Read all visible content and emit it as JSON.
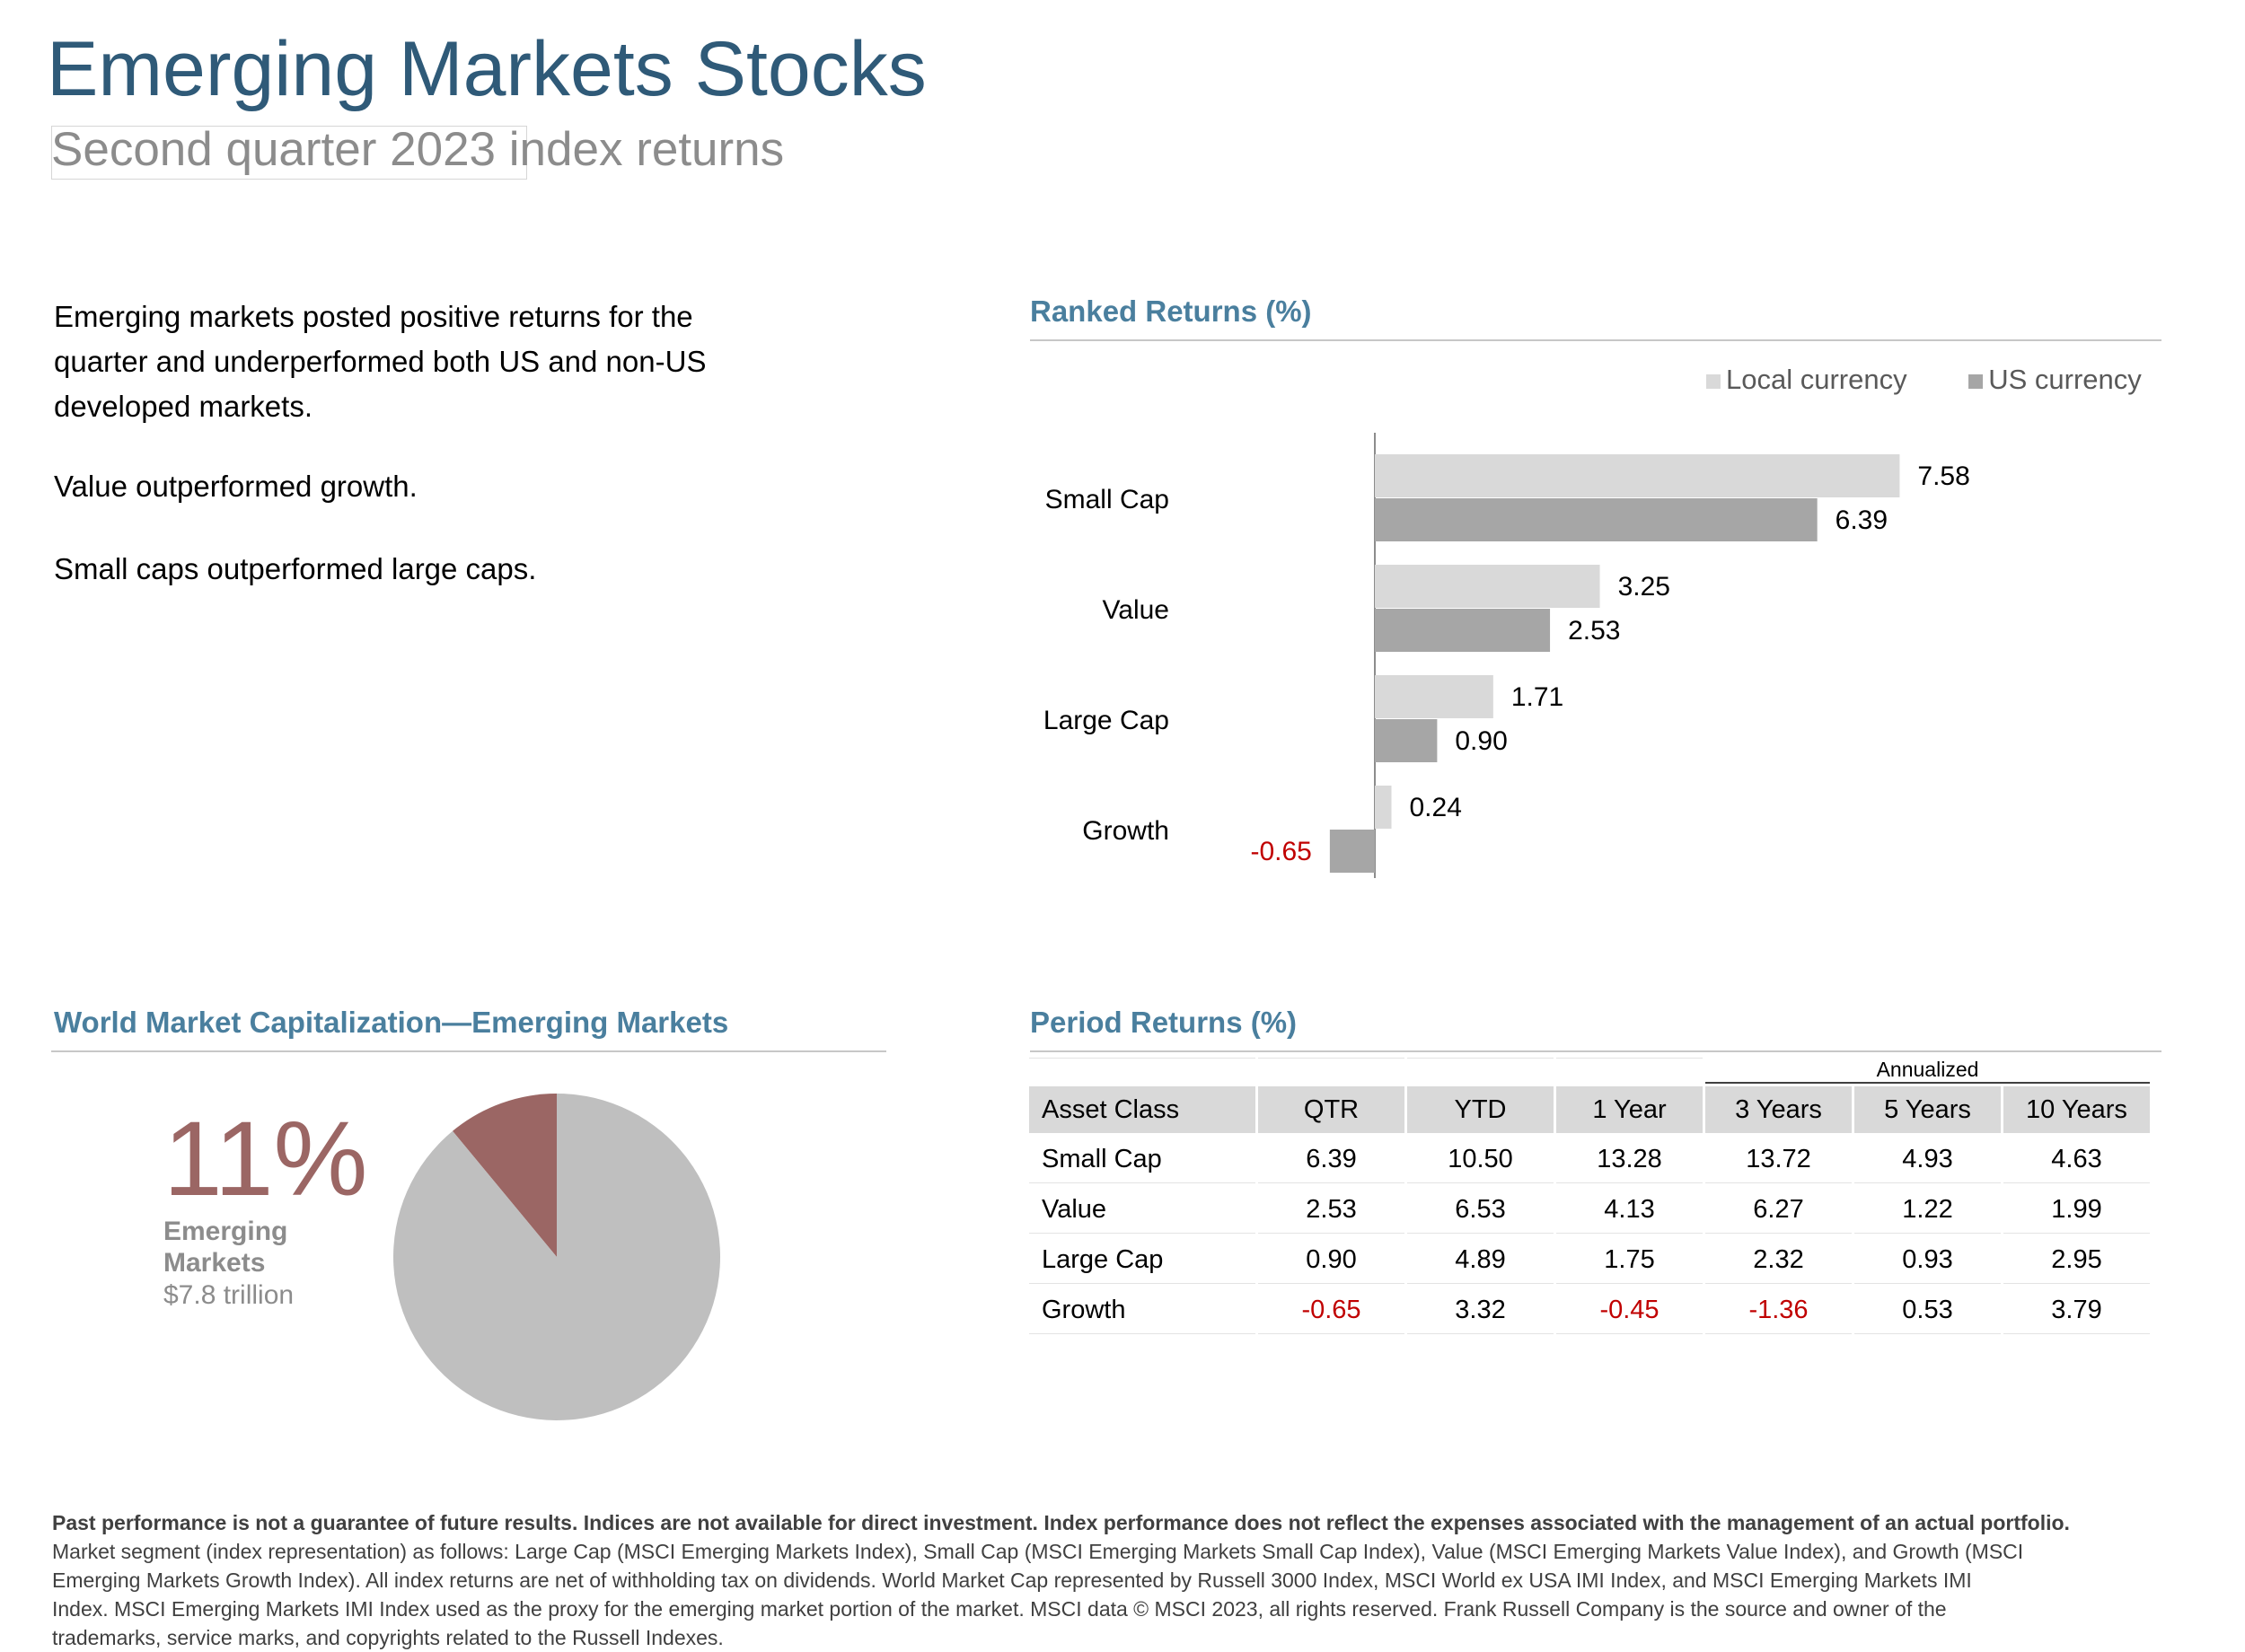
{
  "header": {
    "title": "Emerging Markets Stocks",
    "subtitle": "Second quarter 2023 index returns"
  },
  "bullets": [
    "Emerging markets posted positive returns for the quarter and underperformed both US and non-US developed markets.",
    "Value outperformed growth.",
    "Small caps outperformed large caps."
  ],
  "chart_data": [
    {
      "type": "bar",
      "orientation": "horizontal",
      "title": "Ranked Returns (%)",
      "categories": [
        "Small Cap",
        "Value",
        "Large Cap",
        "Growth"
      ],
      "series": [
        {
          "name": "Local currency",
          "values": [
            7.58,
            3.25,
            1.71,
            0.24
          ],
          "labels": [
            "7.58",
            "3.25",
            "1.71",
            "0.24"
          ],
          "color": "#d9d9d9"
        },
        {
          "name": "US currency",
          "values": [
            6.39,
            2.53,
            0.9,
            -0.65
          ],
          "labels": [
            "6.39",
            "2.53",
            "0.90",
            "-0.65"
          ],
          "color": "#a6a6a6"
        }
      ],
      "legend_position": "top-right",
      "negative_label_color": "#c00000"
    },
    {
      "type": "pie",
      "title": "World Market Capitalization—Emerging Markets",
      "slices": [
        {
          "name": "Emerging Markets",
          "value": 11,
          "color": "#9b6664"
        },
        {
          "value": 89,
          "color": "#bfbfbf"
        }
      ],
      "highlight": {
        "percent_label": "11%",
        "name": "Emerging Markets",
        "value_label": "$7.8 trillion"
      }
    },
    {
      "type": "table",
      "title": "Period Returns (%)",
      "group_label": "Annualized",
      "columns": [
        "Asset Class",
        "QTR",
        "YTD",
        "1 Year",
        "3 Years",
        "5 Years",
        "10 Years"
      ],
      "rows": [
        [
          "Small Cap",
          "6.39",
          "10.50",
          "13.28",
          "13.72",
          "4.93",
          "4.63"
        ],
        [
          "Value",
          "2.53",
          "6.53",
          "4.13",
          "6.27",
          "1.22",
          "1.99"
        ],
        [
          "Large Cap",
          "0.90",
          "4.89",
          "1.75",
          "2.32",
          "0.93",
          "2.95"
        ],
        [
          "Growth",
          "-0.65",
          "3.32",
          "-0.45",
          "-1.36",
          "0.53",
          "3.79"
        ]
      ]
    }
  ],
  "footer": {
    "bold": "Past performance is not a guarantee of future results. Indices are not available for direct investment. Index performance does not reflect the expenses associated with the management of an actual portfolio.",
    "text": "Market segment (index representation) as follows: Large Cap (MSCI Emerging Markets Index), Small Cap (MSCI Emerging Markets Small Cap Index), Value (MSCI Emerging Markets Value Index), and Growth (MSCI Emerging Markets Growth Index). All index returns are net of withholding tax on dividends. World Market Cap represented by Russell 3000 Index, MSCI World ex USA IMI Index, and MSCI Emerging Markets IMI Index. MSCI Emerging Markets IMI Index used as the proxy for the emerging market portion of the market. MSCI data © MSCI 2023, all rights reserved. Frank Russell Company is the source and owner of the trademarks, service marks, and copyrights related to the Russell Indexes."
  }
}
